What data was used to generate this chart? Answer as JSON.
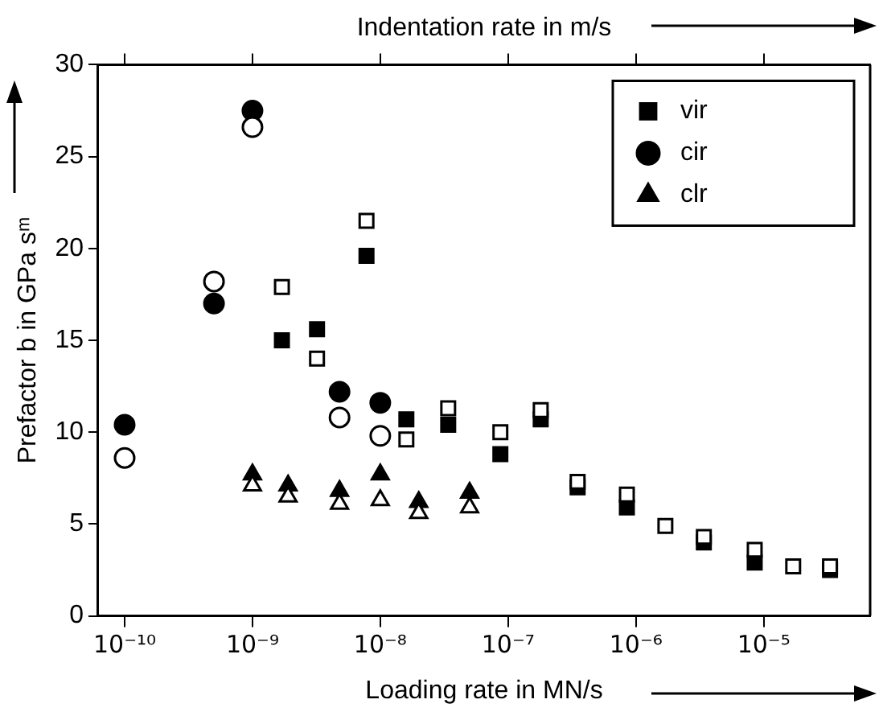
{
  "chart_data": {
    "type": "scatter",
    "xlabel": "Loading rate in MN/s",
    "x2label": "Indentation rate in m/s",
    "ylabel": "Prefactor b in GPa sᵐ",
    "log": "x",
    "grid": false,
    "legend": "top right",
    "xlim": [
      6.2e-11,
      6.8e-05
    ],
    "ylim": [
      0,
      30
    ],
    "xticks": [
      {
        "value": 1e-10,
        "label": "10⁻¹⁰"
      },
      {
        "value": 1e-09,
        "label": "10⁻⁹"
      },
      {
        "value": 1e-08,
        "label": "10⁻⁸"
      },
      {
        "value": 1e-07,
        "label": "10⁻⁷"
      },
      {
        "value": 1e-06,
        "label": "10⁻⁶"
      },
      {
        "value": 1e-05,
        "label": "10⁻⁵"
      }
    ],
    "yticks": [
      0,
      5,
      10,
      15,
      20,
      25,
      30
    ],
    "series": [
      {
        "name": "vir",
        "marker": "square",
        "color": "#000000",
        "x": [
          1.7e-09,
          3.2e-09,
          7.8e-09,
          1.6e-08,
          3.4e-08,
          8.7e-08,
          1.8e-07,
          3.5e-07,
          8.5e-07,
          3.4e-06,
          8.5e-06,
          3.3e-05
        ],
        "values": [
          15.0,
          15.6,
          19.6,
          10.7,
          10.4,
          8.8,
          10.7,
          7.0,
          5.9,
          4.0,
          2.9,
          2.5
        ]
      },
      {
        "name": "cir",
        "marker": "circle",
        "color": "#000000",
        "x": [
          1e-10,
          5e-10,
          1e-09,
          4.8e-09,
          1e-08
        ],
        "values": [
          10.4,
          17.0,
          27.5,
          12.2,
          11.6
        ]
      },
      {
        "name": "clr",
        "marker": "triangle",
        "color": "#000000",
        "x": [
          1e-09,
          1.9e-09,
          4.8e-09,
          1e-08,
          2e-08,
          5e-08
        ],
        "values": [
          7.7,
          7.1,
          6.8,
          7.7,
          6.2,
          6.7
        ]
      },
      {
        "marker": "square",
        "color": "#ffffff",
        "x": [
          1.7e-09,
          3.2e-09,
          7.8e-09,
          1.6e-08,
          3.4e-08,
          8.7e-08,
          1.8e-07,
          3.5e-07,
          8.5e-07,
          1.7e-06,
          3.4e-06,
          8.5e-06,
          1.7e-05,
          3.3e-05
        ],
        "values": [
          17.9,
          14.0,
          21.5,
          9.6,
          11.3,
          10.0,
          11.2,
          7.3,
          6.6,
          4.9,
          4.3,
          3.6,
          2.7,
          2.7
        ]
      },
      {
        "marker": "circle",
        "color": "#ffffff",
        "x": [
          1e-10,
          5e-10,
          1e-09,
          4.8e-09,
          1e-08
        ],
        "values": [
          8.6,
          18.2,
          26.6,
          10.8,
          9.8
        ]
      },
      {
        "marker": "triangle",
        "color": "#ffffff",
        "x": [
          1e-09,
          1.9e-09,
          4.8e-09,
          1e-08,
          2e-08,
          5e-08
        ],
        "values": [
          7.1,
          6.5,
          6.1,
          6.3,
          5.6,
          5.9
        ]
      }
    ]
  }
}
